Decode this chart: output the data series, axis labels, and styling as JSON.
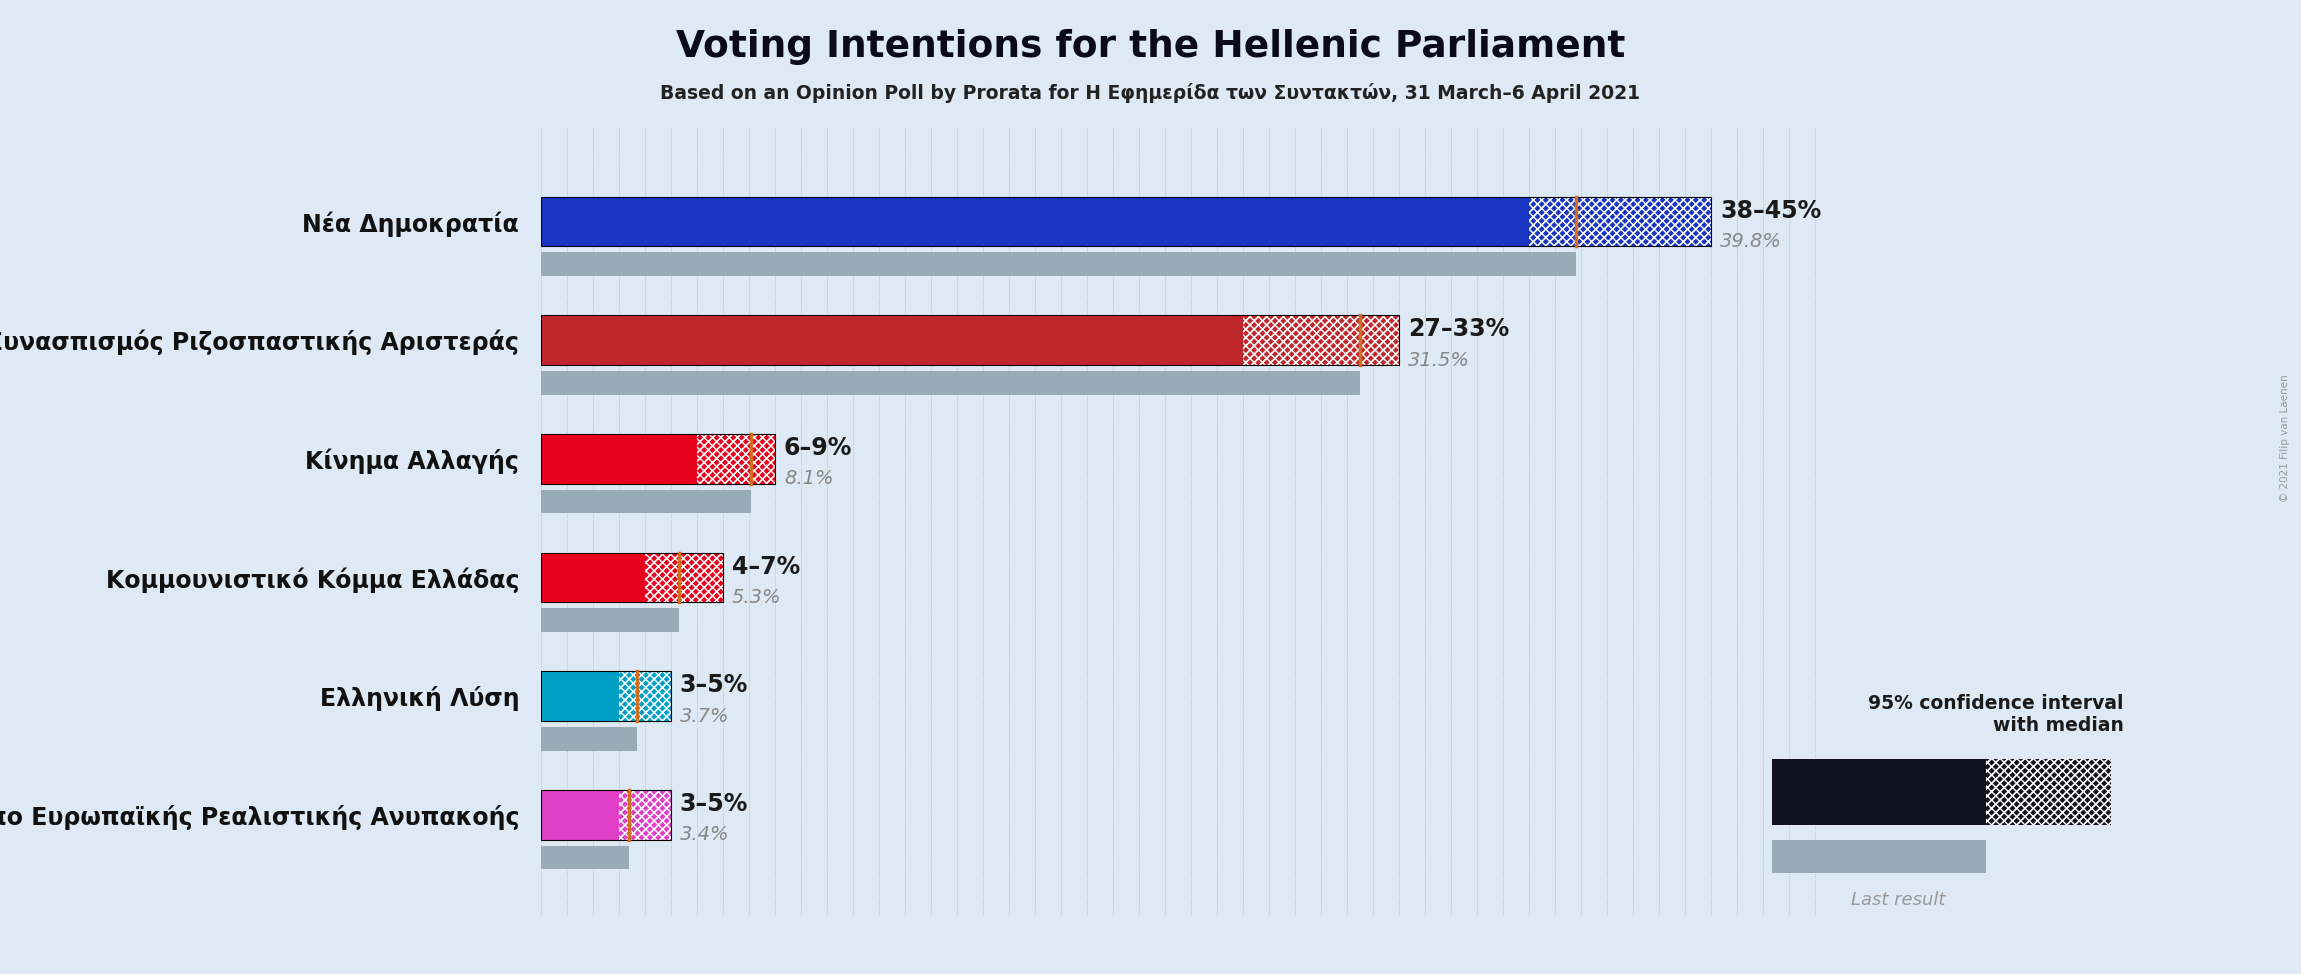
{
  "title": "Voting Intentions for the Hellenic Parliament",
  "subtitle": "Based on an Opinion Poll by Prorata for H Εφημερίδα των Συντακτών, 31 March–6 April 2021",
  "bg_color": "#dde9f5",
  "parties": [
    "Nέα Δημοκρατία",
    "Συνασπισμός Ριζοσπαστικής Αριστεράς",
    "Κίνημα Αλλαγής",
    "Κομμουνιστικό Κόμμα Ελλάδας",
    "Ελληνική Λύση",
    "Μέτωπο Ευρωπαϊκής Ρεαλιστικής Ανυπακοής"
  ],
  "ci_low": [
    38,
    27,
    6,
    4,
    3,
    3
  ],
  "ci_high": [
    45,
    33,
    9,
    7,
    5,
    5
  ],
  "median": [
    39.8,
    31.5,
    8.1,
    5.3,
    3.7,
    3.4
  ],
  "last_result": [
    39.8,
    31.5,
    8.1,
    5.3,
    3.7,
    3.4
  ],
  "ci_labels": [
    "38–45%",
    "27–33%",
    "6–9%",
    "4–7%",
    "3–5%",
    "3–5%"
  ],
  "median_labels": [
    "39.8%",
    "31.5%",
    "8.1%",
    "5.3%",
    "3.7%",
    "3.4%"
  ],
  "colors": [
    "#1a35c2",
    "#c0272d",
    "#e8001c",
    "#e8001c",
    "#00a0c6",
    "#e040c8"
  ],
  "last_result_color": "#9aabb8",
  "median_line_color": "#d07020",
  "grid_color": "#8899bb",
  "figsize": [
    23.01,
    9.74
  ],
  "dpi": 100,
  "xlim_max": 50,
  "copyright": "© 2021 Filip van Laenen"
}
